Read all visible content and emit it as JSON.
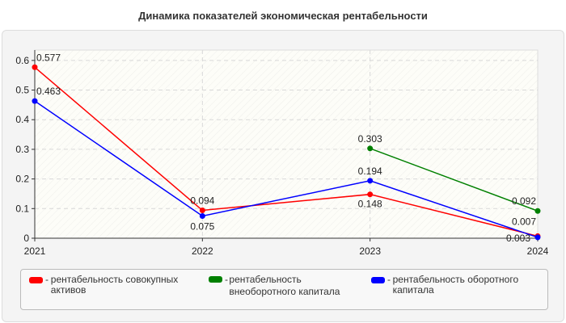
{
  "chart_data": {
    "type": "line",
    "title": "Динамика показателей экономическая рентабельности",
    "categories": [
      "2021",
      "2022",
      "2023",
      "2024"
    ],
    "ylim": [
      0,
      0.635
    ],
    "yticks": [
      "0",
      "0.1",
      "0.2",
      "0.3",
      "0.4",
      "0.5",
      "0.6"
    ],
    "grid": true,
    "legend_position": "bottom",
    "series": [
      {
        "name": "рентабельность совокупных активов",
        "color": "#ff0000",
        "values": [
          0.577,
          0.094,
          0.148,
          0.007
        ]
      },
      {
        "name": "рентабельность внеоборотного капитала",
        "color": "#008000",
        "values": [
          null,
          null,
          0.303,
          0.092
        ]
      },
      {
        "name": "рентабельность оборотного капитала",
        "color": "#0000ff",
        "values": [
          0.463,
          0.075,
          0.194,
          0.003
        ]
      }
    ]
  }
}
